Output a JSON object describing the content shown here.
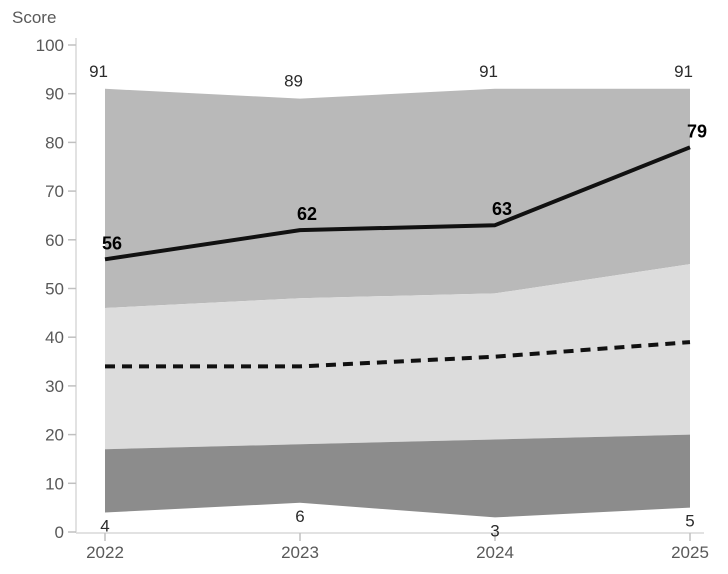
{
  "chart_data": {
    "type": "area",
    "title": "",
    "ylabel": "Score",
    "xlabel": "",
    "categories": [
      "2022",
      "2023",
      "2024",
      "2025"
    ],
    "ylim": [
      0,
      100
    ],
    "ytick_step": 10,
    "grid": false,
    "legend": "none",
    "series": [
      {
        "name": "range-top",
        "role": "band-boundary",
        "values": [
          91,
          89,
          91,
          91
        ],
        "labels": {
          "show": true,
          "position": "above",
          "anchor": "end",
          "weight": "normal"
        }
      },
      {
        "name": "upper-middle-boundary",
        "role": "band-boundary",
        "values": [
          46,
          48,
          49,
          55
        ],
        "labels": {
          "show": false
        }
      },
      {
        "name": "middle-lower-boundary",
        "role": "band-boundary",
        "values": [
          17,
          18,
          19,
          20
        ],
        "labels": {
          "show": false
        }
      },
      {
        "name": "range-bottom",
        "role": "band-boundary",
        "values": [
          4,
          6,
          3,
          5
        ],
        "labels": {
          "show": true,
          "position": "below",
          "anchor": "middle",
          "weight": "normal"
        }
      },
      {
        "name": "primary-score-line",
        "role": "line",
        "style": "solid",
        "values": [
          56,
          62,
          63,
          79
        ],
        "labels": {
          "show": true,
          "position": "above",
          "anchor": "start",
          "weight": "bold"
        }
      },
      {
        "name": "secondary-score-line",
        "role": "line",
        "style": "dashed",
        "values": [
          34,
          34,
          36,
          39
        ],
        "labels": {
          "show": false
        }
      }
    ],
    "bands": [
      {
        "name": "upper-band",
        "top": "range-top",
        "bottom": "upper-middle-boundary",
        "color": "#b9b9b9"
      },
      {
        "name": "middle-band",
        "top": "upper-middle-boundary",
        "bottom": "middle-lower-boundary",
        "color": "#dcdcdc"
      },
      {
        "name": "lower-band",
        "top": "middle-lower-boundary",
        "bottom": "range-bottom",
        "color": "#8c8c8c"
      }
    ],
    "colors": {
      "line": "#111111",
      "axis": "#d9d9d9",
      "tick": "#c0c0c0",
      "axis_text": "#595959",
      "band_label_text": "#2b2b2b",
      "line_label_text": "#000000",
      "background": "#ffffff"
    }
  }
}
